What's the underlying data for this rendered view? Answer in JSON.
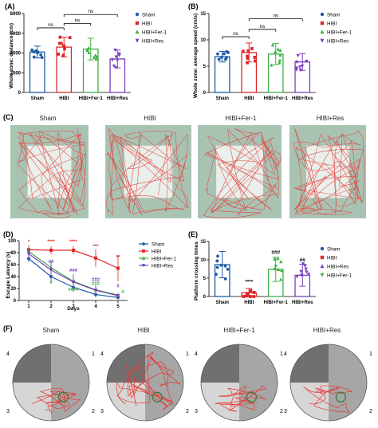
{
  "figure": {
    "panels": {
      "A": {
        "letter": "(A)"
      },
      "B": {
        "letter": "(B)"
      },
      "C": {
        "letter": "(C)"
      },
      "D": {
        "letter": "(D)"
      },
      "E": {
        "letter": "(E)"
      },
      "F": {
        "letter": "(F)"
      }
    },
    "groups": [
      "Sham",
      "HIBI",
      "HIBI+Fer-1",
      "HIBI+Res"
    ],
    "quadrant_labels": [
      "1",
      "2",
      "3",
      "4"
    ],
    "significance": {
      "ns": "ns"
    }
  },
  "colors": {
    "sham": "#1f5aa6",
    "hibi": "#e0262a",
    "fer1": "#3cb043",
    "res": "#7b3fbf",
    "track": "#e53935",
    "arena_outer": "#a9c3b3",
    "arena_inner": "#e9efeb",
    "pool_dark": "#707070",
    "pool_mid": "#a6a6a6",
    "pool_light": "#d6d6d6",
    "platform": "#2e7d32"
  },
  "chart_data": [
    {
      "panel": "A",
      "type": "bar",
      "ylabel": "Whole zone: distance (cm)",
      "ylim": [
        0,
        8000
      ],
      "yticks": [
        "0",
        "2000",
        "4000",
        "6000",
        "8000"
      ],
      "categories": [
        "Sham",
        "HIBI",
        "HIBI+Fer-1",
        "HIBI+Res"
      ],
      "values": [
        4100,
        4600,
        4400,
        3400
      ],
      "errors": [
        600,
        1000,
        1100,
        900
      ],
      "legend": [
        "Sham",
        "HIBI",
        "HIBI+Fer-1",
        "HIBI+Res"
      ],
      "legend_position": "right",
      "annotations": [
        "ns",
        "ns",
        "ns"
      ]
    },
    {
      "panel": "B",
      "type": "bar",
      "ylabel": "Whole zone: average speed (cm/s)",
      "ylim": [
        0,
        15
      ],
      "yticks": [
        "0",
        "5",
        "10",
        "15"
      ],
      "categories": [
        "Sham",
        "HIBI",
        "HIBI+Fer-1",
        "HIBI+Res"
      ],
      "values": [
        6.8,
        7.6,
        7.3,
        5.8
      ],
      "errors": [
        1.0,
        1.8,
        2.0,
        1.6
      ],
      "legend": [
        "Sham",
        "HIBI",
        "HIBI+Fer-1",
        "HIBI+Res"
      ],
      "legend_position": "right",
      "annotations": [
        "ns",
        "ns",
        "ns"
      ]
    },
    {
      "panel": "D",
      "type": "line",
      "ylabel": "Escape Latency (s)",
      "xlabel": "Days",
      "x": [
        1,
        2,
        3,
        4,
        5
      ],
      "xticks": [
        "1",
        "2",
        "3",
        "4",
        "5"
      ],
      "ylim": [
        0,
        100
      ],
      "yticks": [
        "0",
        "20",
        "40",
        "60",
        "80",
        "100"
      ],
      "series": [
        {
          "name": "Sham",
          "values": [
            70,
            40,
            22,
            10,
            5
          ],
          "errors": [
            6,
            8,
            8,
            5,
            3
          ]
        },
        {
          "name": "HIBI",
          "values": [
            85,
            84,
            84,
            71,
            54
          ],
          "errors": [
            8,
            7,
            7,
            15,
            22
          ]
        },
        {
          "name": "HIBI+Fer-1",
          "values": [
            82,
            55,
            32,
            18,
            9
          ],
          "errors": [
            7,
            12,
            12,
            8,
            4
          ]
        },
        {
          "name": "HIBI+Res",
          "values": [
            78,
            51,
            31,
            17,
            8
          ],
          "errors": [
            7,
            12,
            12,
            8,
            4
          ]
        }
      ],
      "legend_position": "top-right",
      "annotations": [
        "*",
        "****",
        "****",
        "***",
        "**",
        "##",
        "###",
        "###",
        "#",
        "#",
        "####",
        "###",
        "#"
      ]
    },
    {
      "panel": "E",
      "type": "bar",
      "ylabel": "Platform crossing times",
      "ylim": [
        0,
        15
      ],
      "yticks": [
        "0",
        "5",
        "10",
        "15"
      ],
      "categories": [
        "Sham",
        "HIBI",
        "HIBI+Fer-1",
        "HIBI+Res"
      ],
      "values": [
        8.7,
        1.0,
        7.4,
        5.8
      ],
      "errors": [
        3.6,
        1.2,
        3.3,
        3.0
      ],
      "legend": [
        "Sham",
        "HIBI",
        "HIBI+Res",
        "HIBI+Fer-1"
      ],
      "legend_position": "right",
      "annotations": [
        "****",
        "###",
        "##"
      ]
    }
  ]
}
